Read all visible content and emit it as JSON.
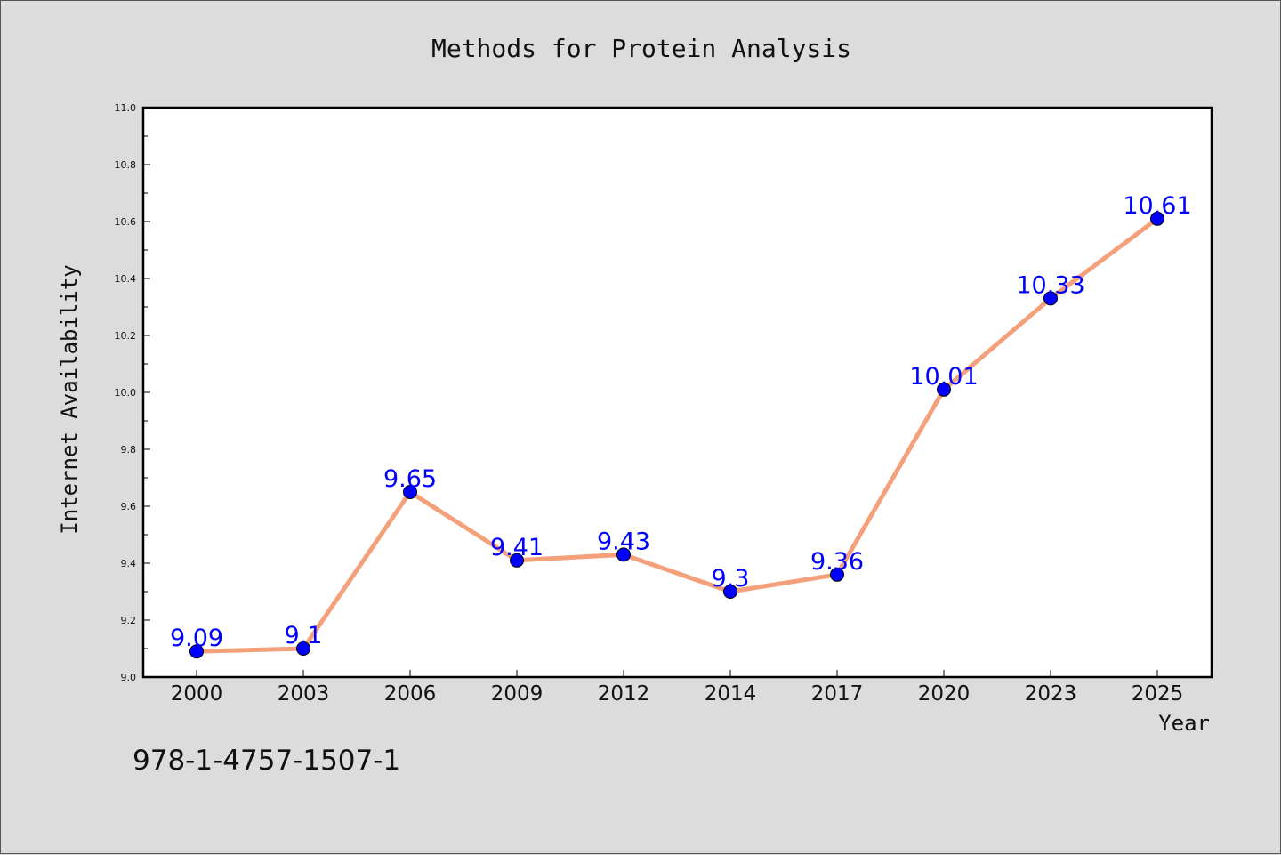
{
  "chart_data": {
    "type": "line",
    "title": "Methods for Protein Analysis",
    "xlabel": "Year",
    "ylabel": "Internet Availability",
    "categories": [
      "2000",
      "2003",
      "2006",
      "2009",
      "2012",
      "2014",
      "2017",
      "2020",
      "2023",
      "2025"
    ],
    "values": [
      9.09,
      9.1,
      9.65,
      9.41,
      9.43,
      9.3,
      9.36,
      10.01,
      10.33,
      10.61
    ],
    "data_labels": [
      "9.09",
      "9.1",
      "9.65",
      "9.41",
      "9.43",
      "9.3",
      "9.36",
      "10.01",
      "10.33",
      "10.61"
    ],
    "ylim": [
      9.0,
      11.0
    ],
    "yticks": [
      "9.0",
      "9.2",
      "9.4",
      "9.6",
      "9.8",
      "10.0",
      "10.2",
      "10.4",
      "10.6",
      "10.8",
      "11.0"
    ],
    "grid": false,
    "line_color": "#f4a07a",
    "marker_color": "#0000ff",
    "label_color": "#0000ff"
  },
  "footer": {
    "isbn": "978-1-4757-1507-1"
  }
}
